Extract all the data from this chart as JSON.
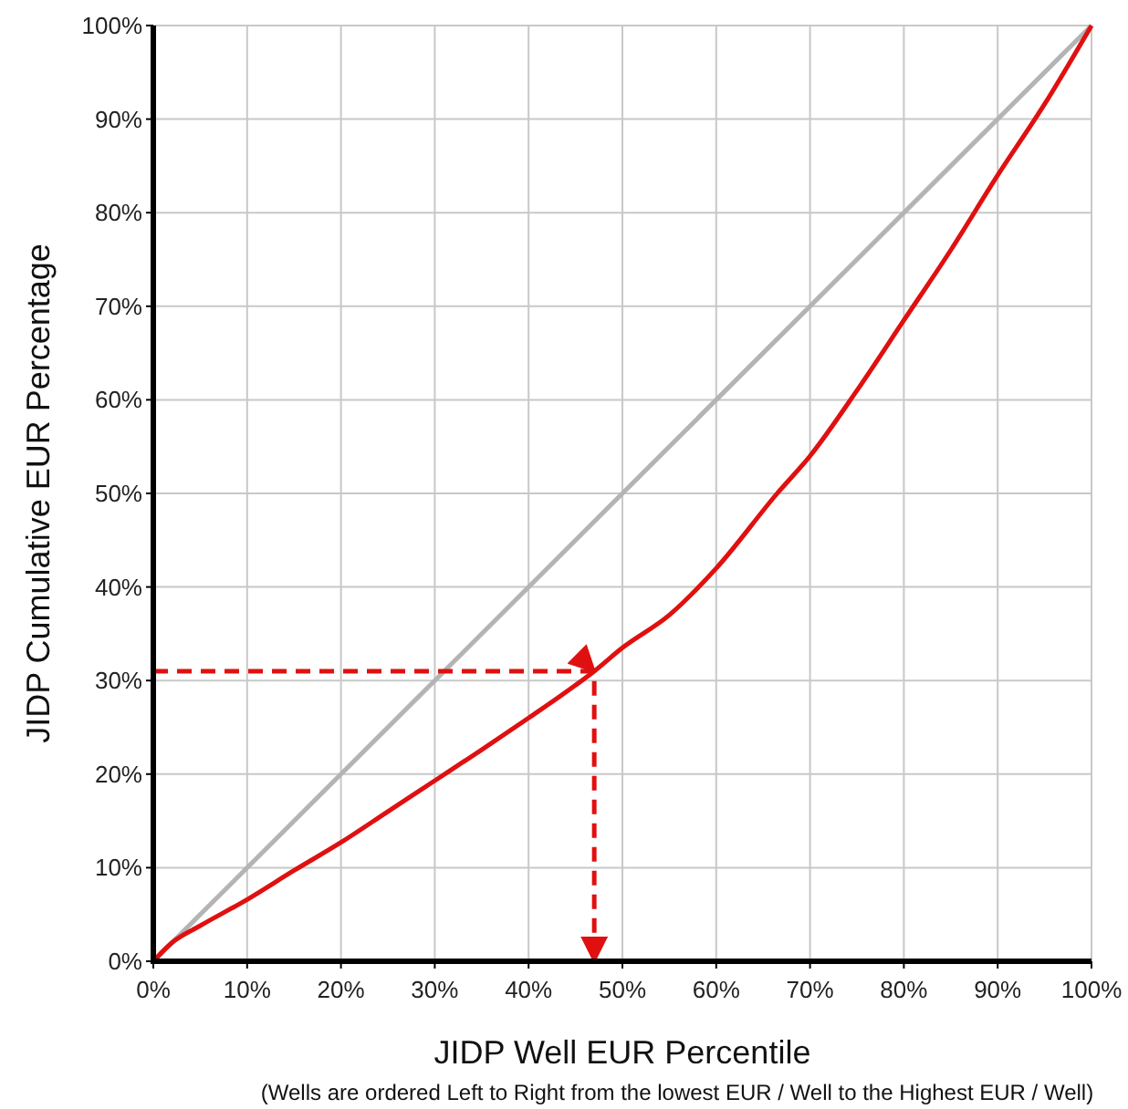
{
  "chart_data": {
    "type": "line",
    "xlabel": "JIDP Well EUR Percentile",
    "ylabel": "JIDP Cumulative EUR Percentage",
    "annotations": [
      "(Wells are ordered Left to Right from the  lowest EUR / Well  to the Highest EUR / Well)"
    ],
    "xlim": [
      0,
      100
    ],
    "ylim": [
      0,
      100
    ],
    "xticks": [
      {
        "value": 0,
        "label": "0%"
      },
      {
        "value": 10,
        "label": "10%"
      },
      {
        "value": 20,
        "label": "20%"
      },
      {
        "value": 30,
        "label": "30%"
      },
      {
        "value": 40,
        "label": "40%"
      },
      {
        "value": 50,
        "label": "50%"
      },
      {
        "value": 60,
        "label": "60%"
      },
      {
        "value": 70,
        "label": "70%"
      },
      {
        "value": 80,
        "label": "80%"
      },
      {
        "value": 90,
        "label": "90%"
      },
      {
        "value": 100,
        "label": "100%"
      }
    ],
    "yticks": [
      {
        "value": 0,
        "label": "0%"
      },
      {
        "value": 10,
        "label": "10%"
      },
      {
        "value": 20,
        "label": "20%"
      },
      {
        "value": 30,
        "label": "30%"
      },
      {
        "value": 40,
        "label": "40%"
      },
      {
        "value": 50,
        "label": "50%"
      },
      {
        "value": 60,
        "label": "60%"
      },
      {
        "value": 70,
        "label": "70%"
      },
      {
        "value": 80,
        "label": "80%"
      },
      {
        "value": 90,
        "label": "90%"
      },
      {
        "value": 100,
        "label": "100%"
      }
    ],
    "grid": true,
    "marker": "none",
    "line_style": "solid",
    "series": [
      {
        "color": "#b4b4b4",
        "x": [
          0,
          100
        ],
        "values": [
          0,
          100
        ]
      },
      {
        "color": "#e01010",
        "x": [
          0,
          2,
          5,
          10,
          15,
          20,
          25,
          30,
          35,
          40,
          45,
          47,
          50,
          55,
          60,
          66.5,
          70,
          75,
          80,
          85,
          90,
          95,
          100
        ],
        "values": [
          0,
          2,
          3.8,
          6.6,
          9.7,
          12.7,
          16,
          19.3,
          22.6,
          26,
          29.5,
          31,
          33.5,
          37,
          42,
          50,
          54,
          61,
          68.5,
          76,
          84,
          91.6,
          100
        ]
      },
      {
        "color": "#e01010",
        "line_style": "dashed",
        "x": [
          0,
          47,
          47
        ],
        "values": [
          31,
          31,
          0
        ]
      }
    ]
  }
}
